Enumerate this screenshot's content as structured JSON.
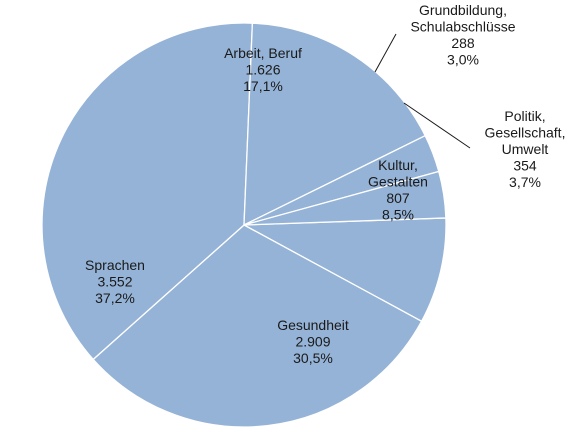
{
  "chart_data": {
    "type": "pie",
    "title": "",
    "colors": {
      "slice": "#95b3d7",
      "border": "#ffffff",
      "text": "#1a1a1a"
    },
    "slices": [
      {
        "name_lines": [
          "Kultur,",
          "Gestalten"
        ],
        "value_text": "807",
        "percent_text": "8,5%",
        "value": 807,
        "percent": 8.5
      },
      {
        "name_lines": [
          "Gesundheit"
        ],
        "value_text": "2.909",
        "percent_text": "30,5%",
        "value": 2909,
        "percent": 30.5
      },
      {
        "name_lines": [
          "Sprachen"
        ],
        "value_text": "3.552",
        "percent_text": "37,2%",
        "value": 3552,
        "percent": 37.2
      },
      {
        "name_lines": [
          "Arbeit, Beruf"
        ],
        "value_text": "1.626",
        "percent_text": "17,1%",
        "value": 1626,
        "percent": 17.1
      },
      {
        "name_lines": [
          "Grundbildung,",
          "Schulabschlüsse"
        ],
        "value_text": "288",
        "percent_text": "3,0%",
        "value": 288,
        "percent": 3.0
      },
      {
        "name_lines": [
          "Politik,",
          "Gesellschaft,",
          "Umwelt"
        ],
        "value_text": "354",
        "percent_text": "3,7%",
        "value": 354,
        "percent": 3.7
      }
    ]
  }
}
